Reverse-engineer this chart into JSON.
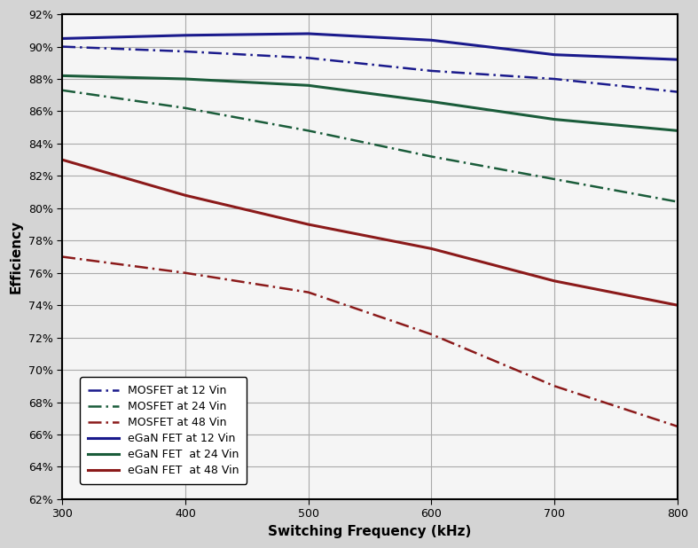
{
  "x": [
    300,
    400,
    500,
    600,
    700,
    800
  ],
  "mosfet_12vin": [
    90.0,
    89.7,
    89.3,
    88.5,
    88.0,
    87.2
  ],
  "mosfet_24vin": [
    87.3,
    86.2,
    84.8,
    83.2,
    81.8,
    80.4
  ],
  "mosfet_48vin": [
    77.0,
    76.0,
    74.8,
    72.2,
    69.0,
    66.5
  ],
  "egan_12vin": [
    90.5,
    90.7,
    90.8,
    90.4,
    89.5,
    89.2
  ],
  "egan_24vin": [
    88.2,
    88.0,
    87.6,
    86.6,
    85.5,
    84.8
  ],
  "egan_48vin": [
    83.0,
    80.8,
    79.0,
    77.5,
    75.5,
    74.0
  ],
  "mosfet_12_color": "#1a1a8c",
  "mosfet_24_color": "#1a5c3a",
  "mosfet_48_color": "#8B1a1a",
  "egan_12_color": "#1a1a8c",
  "egan_24_color": "#1a5c3a",
  "egan_48_color": "#8B1a1a",
  "xlabel": "Switching Frequency (kHz)",
  "ylabel": "Efficiency",
  "xlim": [
    300,
    800
  ],
  "ylim": [
    62,
    92
  ],
  "yticks": [
    62,
    64,
    66,
    68,
    70,
    72,
    74,
    76,
    78,
    80,
    82,
    84,
    86,
    88,
    90,
    92
  ],
  "xticks": [
    300,
    400,
    500,
    600,
    700,
    800
  ],
  "legend_labels": [
    "MOSFET at 12 Vin",
    "MOSFET at 24 Vin",
    "MOSFET at 48 Vin",
    "eGaN FET at 12 Vin",
    "eGaN FET  at 24 Vin",
    "eGaN FET  at 48 Vin"
  ],
  "plot_bg_color": "#f5f5f5",
  "fig_bg_color": "#d4d4d4",
  "grid_color": "#aaaaaa"
}
